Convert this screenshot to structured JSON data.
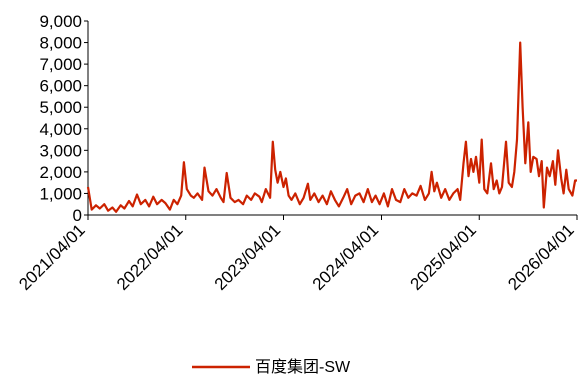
{
  "chart_data": {
    "type": "line",
    "title": "",
    "xlabel": "",
    "ylabel": "",
    "ylim": [
      0,
      9000
    ],
    "y_ticks": [
      "0",
      "1,000",
      "2,000",
      "3,000",
      "4,000",
      "5,000",
      "6,000",
      "7,000",
      "8,000",
      "9,000"
    ],
    "x_ticks": [
      "2021/04/01",
      "2022/04/01",
      "2023/04/01",
      "2024/04/01",
      "2025/04/01",
      "2026/04/01"
    ],
    "grid": false,
    "legend_position": "bottom-center",
    "series": [
      {
        "name": "百度集团-SW",
        "color": "#cc2200",
        "points": [
          [
            "2021/04/01",
            1300
          ],
          [
            "2021/04/15",
            250
          ],
          [
            "2021/05/01",
            450
          ],
          [
            "2021/05/15",
            300
          ],
          [
            "2021/06/01",
            500
          ],
          [
            "2021/06/15",
            200
          ],
          [
            "2021/07/01",
            350
          ],
          [
            "2021/07/15",
            150
          ],
          [
            "2021/08/01",
            450
          ],
          [
            "2021/08/15",
            300
          ],
          [
            "2021/09/01",
            650
          ],
          [
            "2021/09/15",
            400
          ],
          [
            "2021/10/01",
            950
          ],
          [
            "2021/10/15",
            500
          ],
          [
            "2021/11/01",
            700
          ],
          [
            "2021/11/15",
            400
          ],
          [
            "2021/12/01",
            850
          ],
          [
            "2021/12/15",
            500
          ],
          [
            "2022/01/01",
            700
          ],
          [
            "2022/01/15",
            550
          ],
          [
            "2022/02/01",
            250
          ],
          [
            "2022/02/15",
            700
          ],
          [
            "2022/03/01",
            500
          ],
          [
            "2022/03/15",
            900
          ],
          [
            "2022/03/25",
            2450
          ],
          [
            "2022/04/05",
            1200
          ],
          [
            "2022/04/20",
            900
          ],
          [
            "2022/05/01",
            800
          ],
          [
            "2022/05/15",
            1000
          ],
          [
            "2022/06/01",
            700
          ],
          [
            "2022/06/10",
            2200
          ],
          [
            "2022/06/25",
            1100
          ],
          [
            "2022/07/10",
            900
          ],
          [
            "2022/07/25",
            1200
          ],
          [
            "2022/08/10",
            800
          ],
          [
            "2022/08/20",
            600
          ],
          [
            "2022/09/01",
            1950
          ],
          [
            "2022/09/15",
            800
          ],
          [
            "2022/10/01",
            600
          ],
          [
            "2022/10/15",
            700
          ],
          [
            "2022/11/01",
            500
          ],
          [
            "2022/11/15",
            900
          ],
          [
            "2022/12/01",
            700
          ],
          [
            "2022/12/15",
            1000
          ],
          [
            "2023/01/01",
            850
          ],
          [
            "2023/01/10",
            600
          ],
          [
            "2023/01/25",
            1200
          ],
          [
            "2023/02/10",
            800
          ],
          [
            "2023/02/20",
            3400
          ],
          [
            "2023/03/01",
            2100
          ],
          [
            "2023/03/10",
            1500
          ],
          [
            "2023/03/20",
            2000
          ],
          [
            "2023/04/01",
            1300
          ],
          [
            "2023/04/10",
            1700
          ],
          [
            "2023/04/20",
            900
          ],
          [
            "2023/05/01",
            700
          ],
          [
            "2023/05/15",
            1000
          ],
          [
            "2023/06/01",
            500
          ],
          [
            "2023/06/15",
            800
          ],
          [
            "2023/07/01",
            1450
          ],
          [
            "2023/07/10",
            700
          ],
          [
            "2023/07/25",
            1000
          ],
          [
            "2023/08/10",
            600
          ],
          [
            "2023/08/25",
            900
          ],
          [
            "2023/09/10",
            500
          ],
          [
            "2023/09/25",
            1100
          ],
          [
            "2023/10/10",
            700
          ],
          [
            "2023/10/25",
            400
          ],
          [
            "2023/11/10",
            800
          ],
          [
            "2023/11/25",
            1200
          ],
          [
            "2023/12/10",
            500
          ],
          [
            "2023/12/25",
            900
          ],
          [
            "2024/01/10",
            1000
          ],
          [
            "2024/01/25",
            600
          ],
          [
            "2024/02/10",
            1200
          ],
          [
            "2024/02/25",
            600
          ],
          [
            "2024/03/10",
            900
          ],
          [
            "2024/03/25",
            500
          ],
          [
            "2024/04/10",
            1000
          ],
          [
            "2024/04/25",
            400
          ],
          [
            "2024/05/10",
            1200
          ],
          [
            "2024/05/25",
            700
          ],
          [
            "2024/06/10",
            600
          ],
          [
            "2024/06/25",
            1200
          ],
          [
            "2024/07/10",
            800
          ],
          [
            "2024/07/25",
            1000
          ],
          [
            "2024/08/10",
            900
          ],
          [
            "2024/08/25",
            1350
          ],
          [
            "2024/09/10",
            700
          ],
          [
            "2024/09/25",
            1000
          ],
          [
            "2024/10/05",
            2000
          ],
          [
            "2024/10/15",
            1100
          ],
          [
            "2024/10/25",
            1500
          ],
          [
            "2024/11/10",
            800
          ],
          [
            "2024/11/25",
            1200
          ],
          [
            "2024/12/10",
            700
          ],
          [
            "2024/12/25",
            1000
          ],
          [
            "2025/01/10",
            1200
          ],
          [
            "2025/01/20",
            700
          ],
          [
            "2025/02/01",
            2400
          ],
          [
            "2025/02/10",
            3400
          ],
          [
            "2025/02/20",
            1800
          ],
          [
            "2025/03/01",
            2600
          ],
          [
            "2025/03/10",
            2000
          ],
          [
            "2025/03/20",
            2700
          ],
          [
            "2025/04/01",
            1500
          ],
          [
            "2025/04/10",
            3500
          ],
          [
            "2025/04/20",
            1200
          ],
          [
            "2025/05/01",
            1000
          ],
          [
            "2025/05/15",
            2400
          ],
          [
            "2025/05/25",
            1200
          ],
          [
            "2025/06/05",
            1600
          ],
          [
            "2025/06/15",
            1000
          ],
          [
            "2025/06/25",
            1300
          ],
          [
            "2025/07/10",
            3400
          ],
          [
            "2025/07/20",
            1500
          ],
          [
            "2025/08/01",
            1300
          ],
          [
            "2025/08/10",
            2000
          ],
          [
            "2025/08/20",
            3500
          ],
          [
            "2025/09/01",
            8000
          ],
          [
            "2025/09/10",
            5000
          ],
          [
            "2025/09/20",
            2400
          ],
          [
            "2025/10/01",
            4300
          ],
          [
            "2025/10/10",
            2000
          ],
          [
            "2025/10/20",
            2700
          ],
          [
            "2025/11/01",
            2600
          ],
          [
            "2025/11/10",
            1800
          ],
          [
            "2025/11/20",
            2500
          ],
          [
            "2025/11/28",
            350
          ],
          [
            "2025/12/10",
            2200
          ],
          [
            "2025/12/20",
            1800
          ],
          [
            "2026/01/01",
            2500
          ],
          [
            "2026/01/10",
            1400
          ],
          [
            "2026/01/20",
            3000
          ],
          [
            "2026/02/01",
            1700
          ],
          [
            "2026/02/10",
            1000
          ],
          [
            "2026/02/20",
            2100
          ],
          [
            "2026/03/01",
            1200
          ],
          [
            "2026/03/15",
            900
          ],
          [
            "2026/03/25",
            1600
          ],
          [
            "2026/04/01",
            1600
          ]
        ]
      }
    ]
  }
}
